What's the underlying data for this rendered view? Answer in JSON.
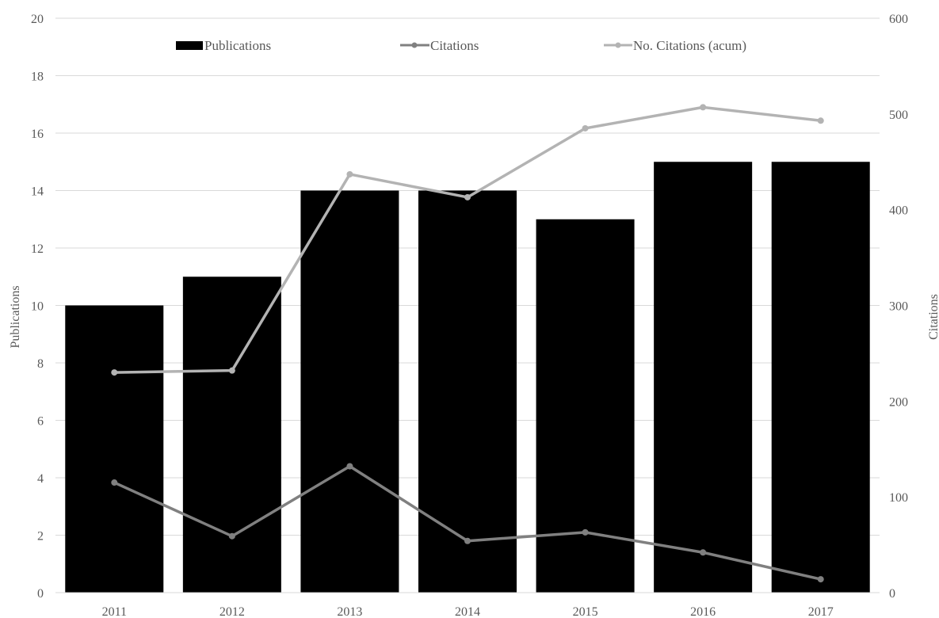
{
  "chart_data": {
    "type": "bar",
    "categories": [
      "2011",
      "2012",
      "2013",
      "2014",
      "2015",
      "2016",
      "2017"
    ],
    "y_left": {
      "label": "Publications",
      "range": [
        0,
        20
      ],
      "ticks": [
        "0",
        "2",
        "4",
        "6",
        "8",
        "10",
        "12",
        "14",
        "16",
        "18",
        "20"
      ]
    },
    "y_right": {
      "label": "Citations",
      "range": [
        0,
        600
      ],
      "ticks": [
        "0",
        "100",
        "200",
        "300",
        "400",
        "500",
        "600"
      ]
    },
    "grid": true,
    "legend": "top",
    "series": [
      {
        "name": "Publications",
        "type": "bar",
        "axis": "left",
        "color": "#000000",
        "values": [
          10,
          11,
          14,
          14,
          13,
          15,
          15
        ]
      },
      {
        "name": "Citations",
        "type": "line",
        "axis": "right",
        "color": "#808080",
        "values": [
          115,
          59,
          132,
          54,
          63,
          42,
          14
        ]
      },
      {
        "name": "No. Citations (acum)",
        "type": "line",
        "axis": "right",
        "color": "#b3b3b3",
        "values": [
          230,
          232,
          437,
          413,
          485,
          507,
          493
        ]
      }
    ]
  }
}
